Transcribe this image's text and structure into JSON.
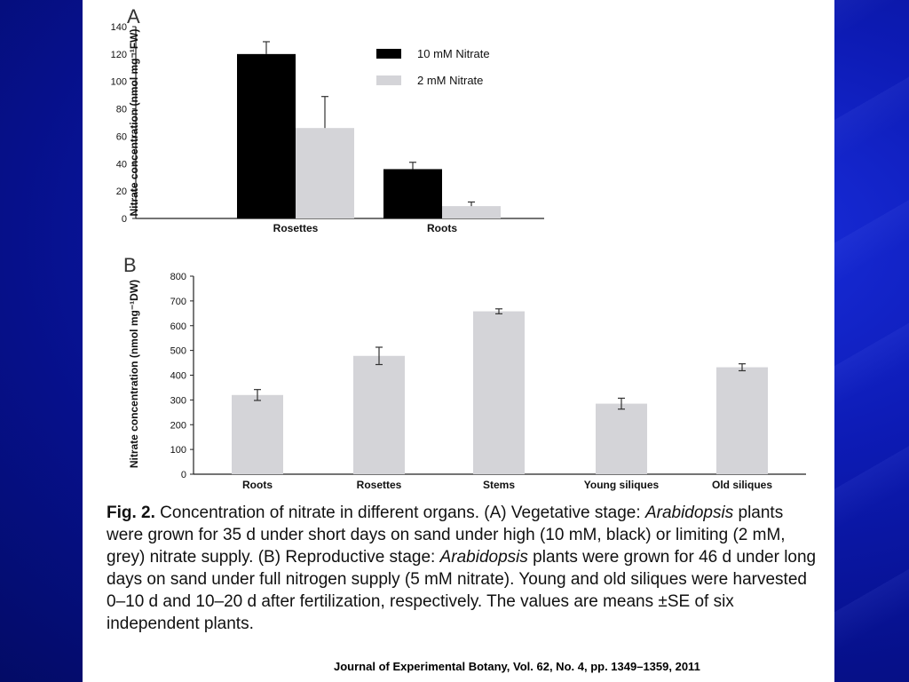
{
  "colors": {
    "background": "#0a18a6",
    "black_series": "#000000",
    "grey_series": "#d4d4d8"
  },
  "chart_data": [
    {
      "type": "bar",
      "panel_label": "A",
      "ylabel": "Nitrate concentration (nmol mg⁻¹FW)",
      "ylim": [
        0,
        140
      ],
      "yticks": [
        0,
        20,
        40,
        60,
        80,
        100,
        120,
        140
      ],
      "categories": [
        "Rosettes",
        "Roots"
      ],
      "series": [
        {
          "name": "10 mM Nitrate",
          "color": "#000000",
          "values": [
            120,
            36
          ],
          "errors": [
            9,
            5
          ]
        },
        {
          "name": "2 mM Nitrate",
          "color": "#d4d4d8",
          "values": [
            66,
            9
          ],
          "errors": [
            23,
            3
          ]
        }
      ],
      "legend": "top-right"
    },
    {
      "type": "bar",
      "panel_label": "B",
      "ylabel": "Nitrate concentration (nmol mg⁻¹DW)",
      "ylim": [
        0,
        800
      ],
      "yticks": [
        0,
        100,
        200,
        300,
        400,
        500,
        600,
        700,
        800
      ],
      "categories": [
        "Roots",
        "Rosettes",
        "Stems",
        "Young siliques",
        "Old siliques"
      ],
      "series": [
        {
          "color": "#d4d4d8",
          "values": [
            320,
            478,
            658,
            285,
            432
          ],
          "errors": [
            22,
            35,
            10,
            22,
            14
          ]
        }
      ]
    }
  ],
  "caption": {
    "fig_label": "Fig. 2.",
    "t1": " Concentration of nitrate in different organs. (A) Vegetative stage: ",
    "t2": "Arabidopsis",
    "t3": " plants were grown for 35 d under short days on sand under high (10 mM, black) or limiting (2 mM, grey) nitrate supply. (B) Reproductive stage: ",
    "t4": "Arabidopsis",
    "t5": " plants were grown for 46 d under long days on sand under full nitrogen supply (5 mM nitrate). Young and old siliques were harvested 0–10 d and 10–20 d after fertilization, respectively. The values are means ±SE of six independent plants."
  },
  "citation": "Journal of Experimental Botany, Vol. 62, No. 4, pp. 1349–1359, 2011"
}
